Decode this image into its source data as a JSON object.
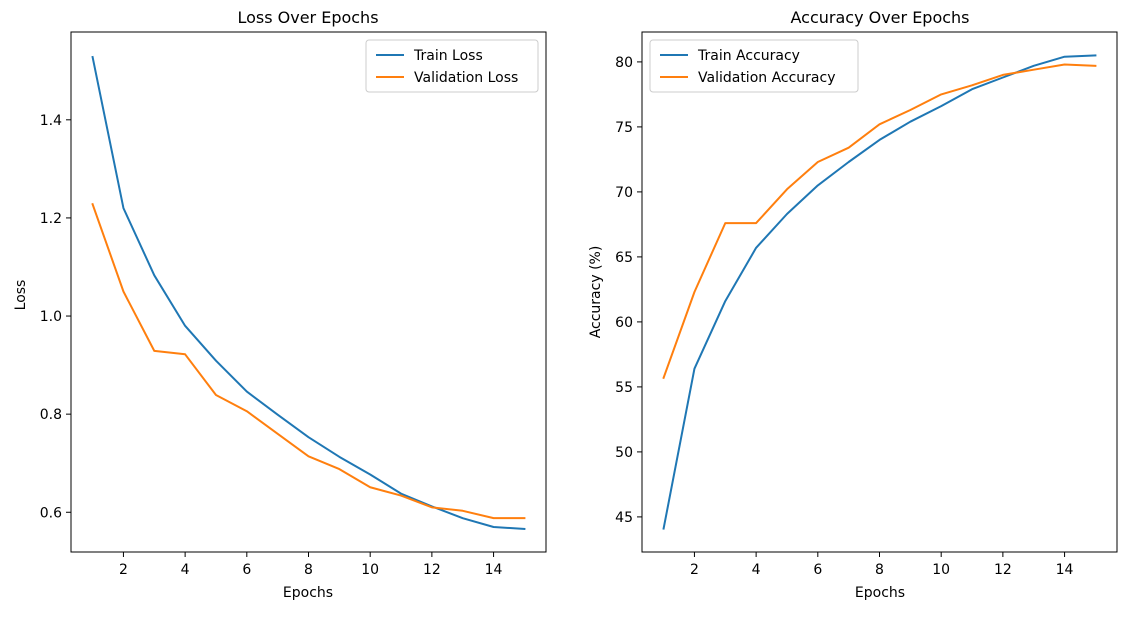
{
  "chart_data": [
    {
      "type": "line",
      "title": "Loss Over Epochs",
      "xlabel": "Epochs",
      "ylabel": "Loss",
      "x": [
        1,
        2,
        3,
        4,
        5,
        6,
        7,
        8,
        9,
        10,
        11,
        12,
        13,
        14,
        15
      ],
      "xlim": [
        0.3,
        15.7
      ],
      "ylim": [
        0.519,
        1.579
      ],
      "xticks": [
        2,
        4,
        6,
        8,
        10,
        12,
        14
      ],
      "yticks": [
        0.6,
        0.8,
        1.0,
        1.2,
        1.4
      ],
      "ytick_labels": [
        "0.6",
        "0.8",
        "1.0",
        "1.2",
        "1.4"
      ],
      "xtick_labels": [
        "2",
        "4",
        "6",
        "8",
        "10",
        "12",
        "14"
      ],
      "grid": false,
      "legend_position": "top-right",
      "series": [
        {
          "name": "Train Loss",
          "color": "#1f77b4",
          "values": [
            1.528,
            1.22,
            1.083,
            0.98,
            0.909,
            0.846,
            0.799,
            0.753,
            0.713,
            0.677,
            0.638,
            0.612,
            0.588,
            0.57,
            0.566
          ]
        },
        {
          "name": "Validation Loss",
          "color": "#ff7f0e",
          "values": [
            1.228,
            1.05,
            0.929,
            0.922,
            0.839,
            0.806,
            0.76,
            0.714,
            0.688,
            0.651,
            0.634,
            0.61,
            0.603,
            0.588,
            0.588
          ]
        }
      ]
    },
    {
      "type": "line",
      "title": "Accuracy Over Epochs",
      "xlabel": "Epochs",
      "ylabel": "Accuracy (%)",
      "x": [
        1,
        2,
        3,
        4,
        5,
        6,
        7,
        8,
        9,
        10,
        11,
        12,
        13,
        14,
        15
      ],
      "xlim": [
        0.3,
        15.7
      ],
      "ylim": [
        42.3,
        82.3
      ],
      "xticks": [
        2,
        4,
        6,
        8,
        10,
        12,
        14
      ],
      "yticks": [
        45,
        50,
        55,
        60,
        65,
        70,
        75,
        80
      ],
      "ytick_labels": [
        "45",
        "50",
        "55",
        "60",
        "65",
        "70",
        "75",
        "80"
      ],
      "xtick_labels": [
        "2",
        "4",
        "6",
        "8",
        "10",
        "12",
        "14"
      ],
      "grid": false,
      "legend_position": "top-left",
      "series": [
        {
          "name": "Train Accuracy",
          "color": "#1f77b4",
          "values": [
            44.1,
            56.4,
            61.6,
            65.7,
            68.3,
            70.5,
            72.3,
            74.0,
            75.4,
            76.6,
            77.9,
            78.8,
            79.7,
            80.4,
            80.5
          ]
        },
        {
          "name": "Validation Accuracy",
          "color": "#ff7f0e",
          "values": [
            55.7,
            62.3,
            67.6,
            67.6,
            70.2,
            72.3,
            73.4,
            75.2,
            76.3,
            77.5,
            78.2,
            79.0,
            79.4,
            79.8,
            79.7
          ]
        }
      ]
    }
  ]
}
